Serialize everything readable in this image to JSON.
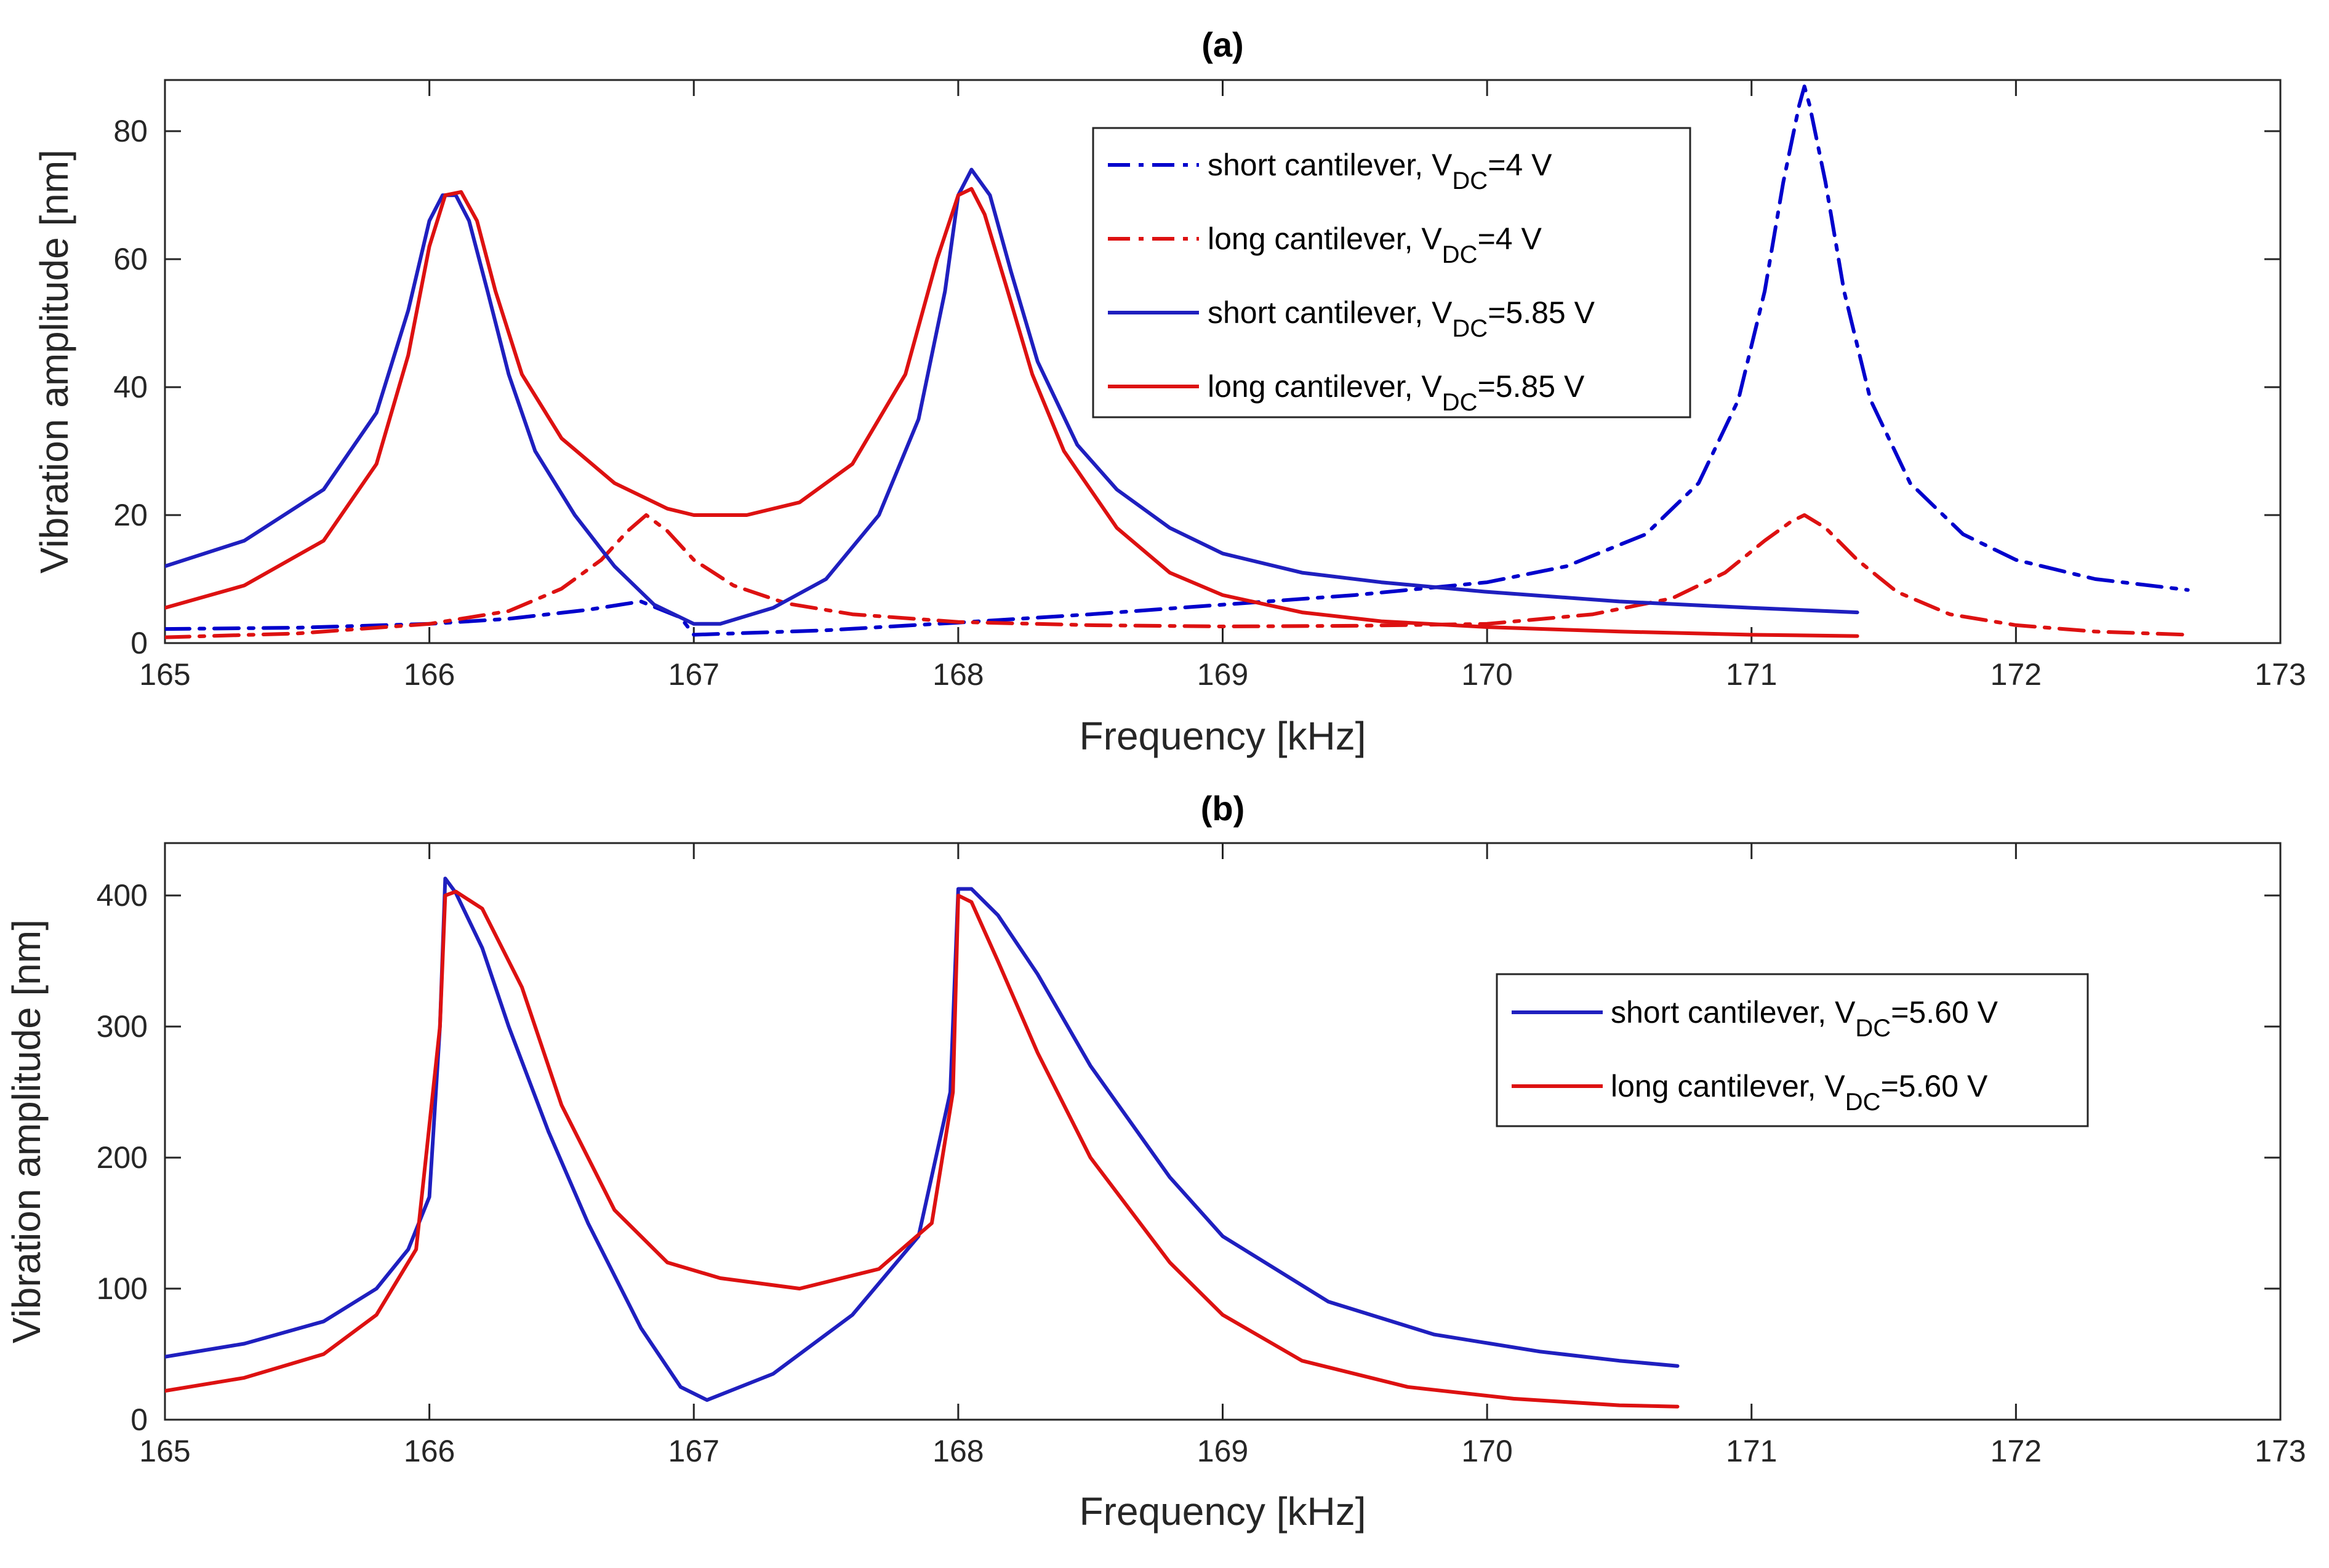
{
  "chart_data": [
    {
      "type": "line",
      "title": "(a)",
      "xlabel": "Frequency [kHz]",
      "ylabel": "Vibration amplitude [nm]",
      "xlim": [
        165,
        173
      ],
      "ylim": [
        0,
        88
      ],
      "xticks": [
        165,
        166,
        167,
        168,
        169,
        170,
        171,
        172,
        173
      ],
      "xtick_labels": [
        "165",
        "166",
        "167",
        "168",
        "169",
        "170",
        "171",
        "172",
        "173"
      ],
      "yticks": [
        0,
        20,
        40,
        60,
        80
      ],
      "ytick_labels": [
        "0",
        "20",
        "40",
        "60",
        "80"
      ],
      "grid": false,
      "legend_position": "top-right",
      "series": [
        {
          "name": "short cantilever, V_DC=4 V",
          "legend_main": "short cantilever, V",
          "legend_sub": "DC",
          "legend_tail": "=4 V",
          "color": "#0000cc",
          "dash": "dashdot",
          "x": [
            165,
            165.5,
            166,
            166.3,
            166.6,
            166.8,
            166.95,
            167.0,
            167.5,
            168,
            168.5,
            169,
            169.5,
            170,
            170.3,
            170.6,
            170.8,
            170.95,
            171.05,
            171.12,
            171.18,
            171.2,
            171.22,
            171.28,
            171.35,
            171.45,
            171.6,
            171.8,
            172,
            172.3,
            172.65
          ],
          "y": [
            2.2,
            2.4,
            3.0,
            3.8,
            5.2,
            6.5,
            4.0,
            1.3,
            2.0,
            3.2,
            4.5,
            6.0,
            7.5,
            9.5,
            12,
            17,
            25,
            38,
            55,
            72,
            84,
            87,
            84,
            72,
            55,
            38,
            25,
            17,
            13,
            10,
            8.3
          ]
        },
        {
          "name": "long cantilever, V_DC=4 V",
          "legend_main": "long cantilever, V",
          "legend_sub": "DC",
          "legend_tail": "=4 V",
          "color": "#dd1111",
          "dash": "dashdot",
          "x": [
            165,
            165.5,
            166,
            166.3,
            166.5,
            166.65,
            166.75,
            166.82,
            166.9,
            167.0,
            167.15,
            167.35,
            167.6,
            168,
            168.5,
            169,
            169.5,
            170,
            170.4,
            170.7,
            170.9,
            171.05,
            171.15,
            171.2,
            171.28,
            171.4,
            171.55,
            171.75,
            172,
            172.3,
            172.65
          ],
          "y": [
            0.9,
            1.5,
            3.0,
            5.0,
            8.5,
            13,
            17.5,
            20,
            17.5,
            13,
            9,
            6.2,
            4.5,
            3.3,
            2.8,
            2.6,
            2.7,
            3.0,
            4.5,
            7,
            11,
            16,
            19,
            20,
            18,
            13,
            8,
            4.5,
            2.8,
            1.8,
            1.3
          ]
        },
        {
          "name": "short cantilever, V_DC=5.85 V",
          "legend_main": "short cantilever, V",
          "legend_sub": "DC",
          "legend_tail": "=5.85 V",
          "color": "#1f1fbf",
          "dash": "solid",
          "x": [
            165,
            165.3,
            165.6,
            165.8,
            165.92,
            166.0,
            166.05,
            166.1,
            166.15,
            166.22,
            166.3,
            166.4,
            166.55,
            166.7,
            166.85,
            167.0,
            167.1,
            167.3,
            167.5,
            167.7,
            167.85,
            167.95,
            168.0,
            168.05,
            168.12,
            168.2,
            168.3,
            168.45,
            168.6,
            168.8,
            169,
            169.3,
            169.6,
            170,
            170.5,
            171,
            171.4
          ],
          "y": [
            12,
            16,
            24,
            36,
            52,
            66,
            70,
            70,
            66,
            55,
            42,
            30,
            20,
            12,
            6,
            3,
            3,
            5.5,
            10,
            20,
            35,
            55,
            70,
            74,
            70,
            58,
            44,
            31,
            24,
            18,
            14,
            11,
            9.5,
            8,
            6.5,
            5.5,
            4.8
          ]
        },
        {
          "name": "long cantilever, V_DC=5.85 V",
          "legend_main": "long cantilever, V",
          "legend_sub": "DC",
          "legend_tail": "=5.85 V",
          "color": "#dd1111",
          "dash": "solid",
          "x": [
            165,
            165.3,
            165.6,
            165.8,
            165.92,
            166.0,
            166.06,
            166.12,
            166.18,
            166.25,
            166.35,
            166.5,
            166.7,
            166.9,
            167.0,
            167.2,
            167.4,
            167.6,
            167.8,
            167.92,
            168.0,
            168.05,
            168.1,
            168.18,
            168.28,
            168.4,
            168.6,
            168.8,
            169,
            169.3,
            169.6,
            170,
            170.5,
            171,
            171.4
          ],
          "y": [
            5.5,
            9,
            16,
            28,
            45,
            62,
            70,
            70.5,
            66,
            55,
            42,
            32,
            25,
            21,
            20,
            20,
            22,
            28,
            42,
            60,
            70,
            71,
            67,
            56,
            42,
            30,
            18,
            11,
            7.5,
            4.8,
            3.4,
            2.5,
            1.8,
            1.3,
            1.1
          ]
        }
      ]
    },
    {
      "type": "line",
      "title": "(b)",
      "xlabel": "Frequency [kHz]",
      "ylabel": "Vibration amplitude [nm]",
      "xlim": [
        165,
        173
      ],
      "ylim": [
        0,
        440
      ],
      "xticks": [
        165,
        166,
        167,
        168,
        169,
        170,
        171,
        172,
        173
      ],
      "xtick_labels": [
        "165",
        "166",
        "167",
        "168",
        "169",
        "170",
        "171",
        "172",
        "173"
      ],
      "yticks": [
        0,
        100,
        200,
        300,
        400
      ],
      "ytick_labels": [
        "0",
        "100",
        "200",
        "300",
        "400"
      ],
      "grid": false,
      "legend_position": "center-right",
      "series": [
        {
          "name": "short cantilever, V_DC=5.60 V",
          "legend_main": "short cantilever, V",
          "legend_sub": "DC",
          "legend_tail": "=5.60 V",
          "color": "#1f1fbf",
          "dash": "solid",
          "x": [
            165,
            165.3,
            165.6,
            165.8,
            165.92,
            166.0,
            166.04,
            166.06,
            166.1,
            166.2,
            166.3,
            166.45,
            166.6,
            166.8,
            166.95,
            167.05,
            167.3,
            167.6,
            167.85,
            167.97,
            168.0,
            168.05,
            168.15,
            168.3,
            168.5,
            168.8,
            169,
            169.4,
            169.8,
            170.2,
            170.5,
            170.72
          ],
          "y": [
            48,
            58,
            75,
            100,
            130,
            170,
            300,
            413,
            402,
            360,
            300,
            220,
            150,
            70,
            25,
            15,
            35,
            80,
            140,
            250,
            405,
            405,
            385,
            340,
            270,
            185,
            140,
            90,
            65,
            52,
            45,
            41
          ]
        },
        {
          "name": "long cantilever, V_DC=5.60 V",
          "legend_main": "long cantilever, V",
          "legend_sub": "DC",
          "legend_tail": "=5.60 V",
          "color": "#dd1111",
          "dash": "solid",
          "x": [
            165,
            165.3,
            165.6,
            165.8,
            165.95,
            166.04,
            166.06,
            166.1,
            166.2,
            166.35,
            166.5,
            166.7,
            166.9,
            167.1,
            167.4,
            167.7,
            167.9,
            167.98,
            168.0,
            168.05,
            168.15,
            168.3,
            168.5,
            168.8,
            169.0,
            169.3,
            169.7,
            170.1,
            170.5,
            170.72
          ],
          "y": [
            22,
            32,
            50,
            80,
            130,
            300,
            400,
            403,
            390,
            330,
            240,
            160,
            120,
            108,
            100,
            115,
            150,
            250,
            400,
            395,
            350,
            280,
            200,
            120,
            80,
            45,
            25,
            16,
            11,
            10
          ]
        }
      ]
    }
  ]
}
